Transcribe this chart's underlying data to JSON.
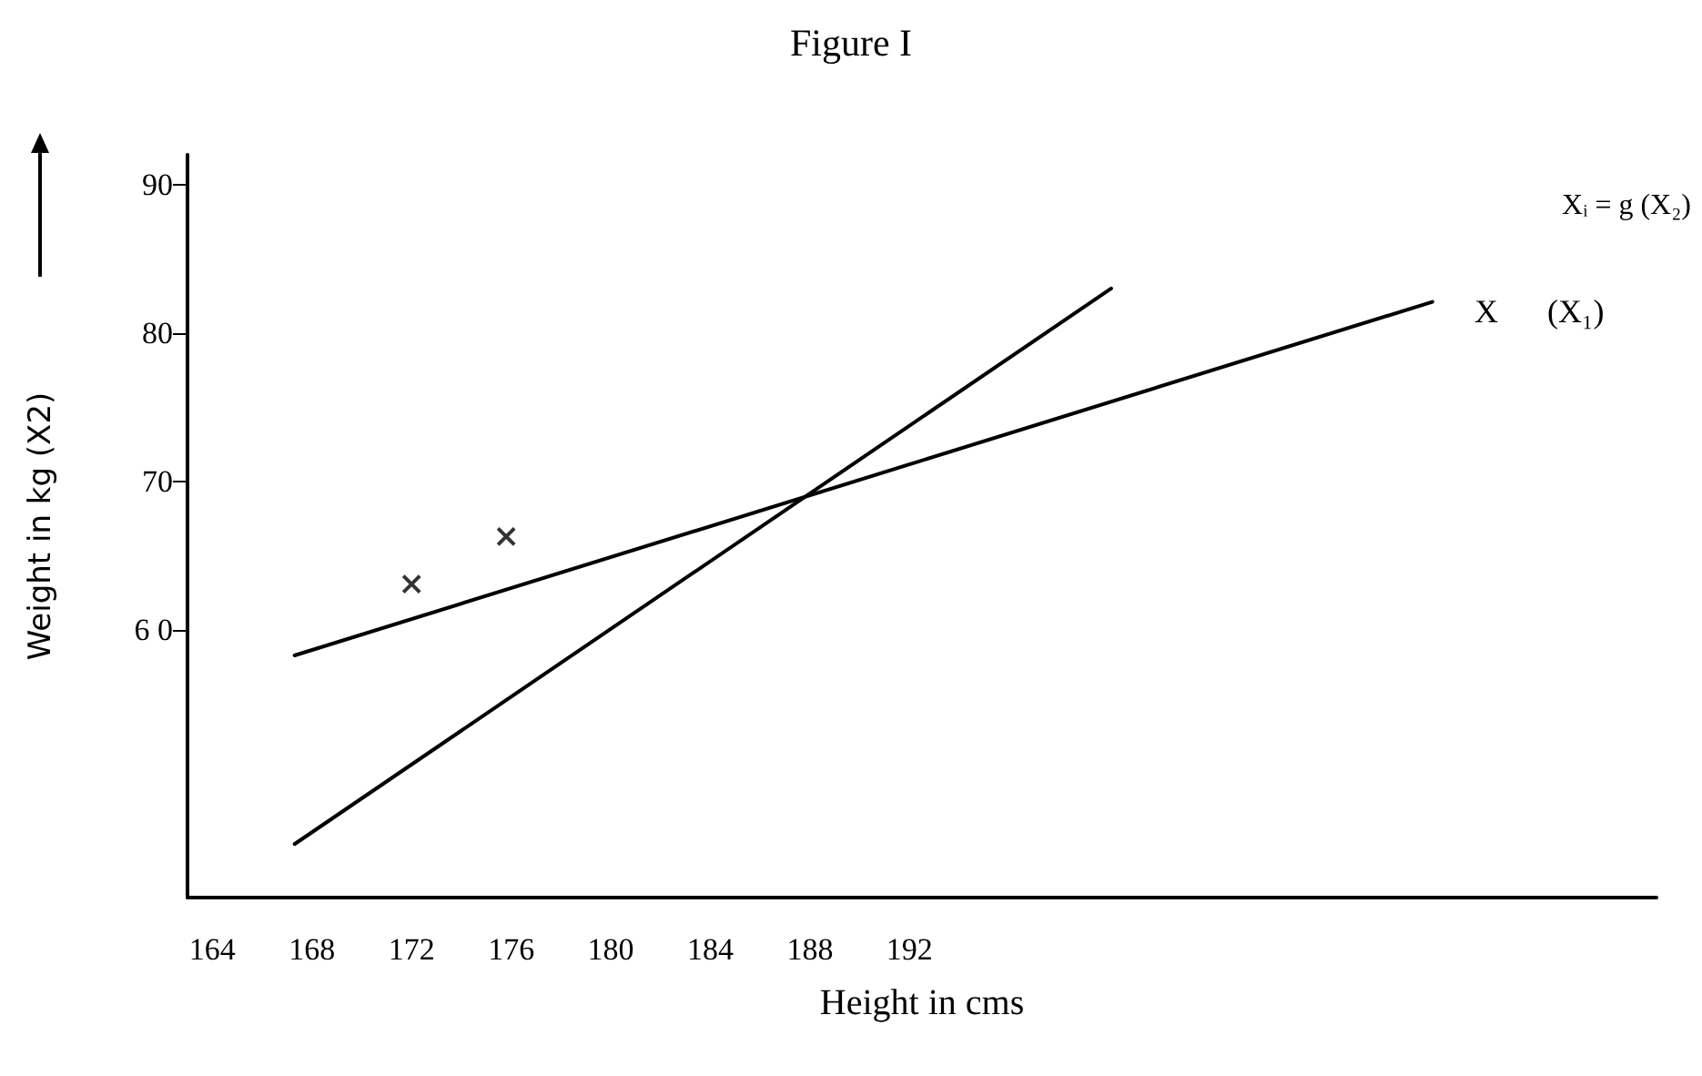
{
  "chart_data": {
    "type": "line",
    "title": "Figure I",
    "xlabel": "Height in cms",
    "ylabel": "Weight in kg (X2)",
    "annotations": [
      "Xᵢ = g (X₂)",
      "X",
      "(X₁)"
    ],
    "series": [
      {
        "color": "#000000",
        "x": [
          167.3,
          213.0
        ],
        "values": [
          58.3,
          82.1
        ]
      },
      {
        "color": "#000000",
        "x": [
          167.3,
          200.1
        ],
        "values": [
          45.6,
          83.0
        ]
      },
      {
        "type": "scatter",
        "color": "#000000",
        "marker": "cross",
        "x": [
          172.0,
          175.8
        ],
        "values": [
          63.1,
          66.3
        ]
      }
    ],
    "xlim": [
      163,
      222
    ],
    "xticks": [
      164,
      168,
      172,
      176,
      180,
      184,
      188,
      192
    ],
    "ylim": [
      42,
      92
    ],
    "yticks": [
      {
        "value": 60,
        "label": "6 0"
      },
      70,
      80,
      90
    ],
    "grid": false,
    "line_style": "solid"
  }
}
